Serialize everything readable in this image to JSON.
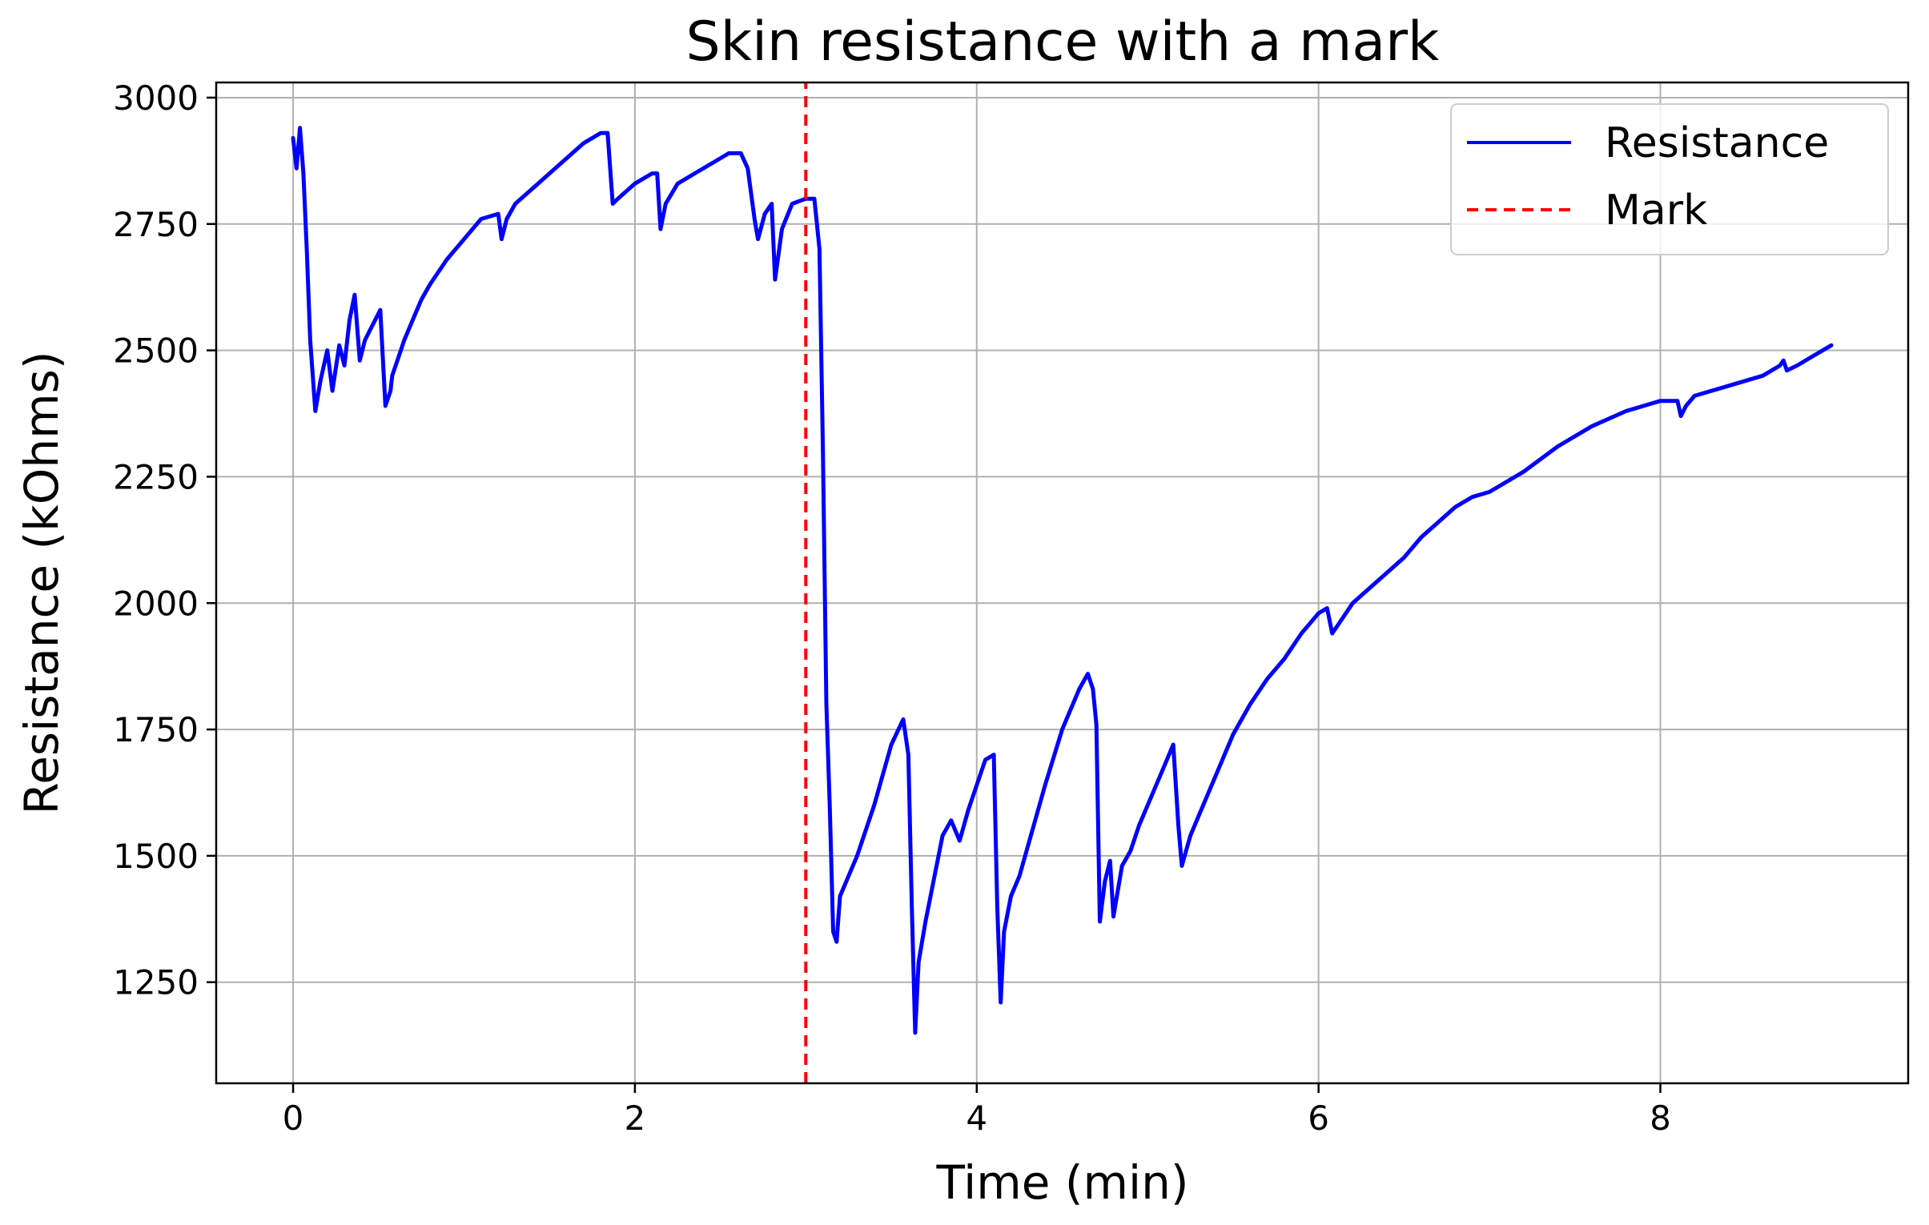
{
  "chart_data": {
    "type": "line",
    "title": "Skin resistance with a mark",
    "xlabel": "Time (min)",
    "ylabel": "Resistance (kOhms)",
    "xlim": [
      -0.45,
      9.45
    ],
    "ylim": [
      1050,
      3030
    ],
    "xticks": [
      0,
      2,
      4,
      6,
      8
    ],
    "yticks": [
      1250,
      1500,
      1750,
      2000,
      2250,
      2500,
      2750,
      3000
    ],
    "grid": true,
    "legend_position": "top-right",
    "colors": {
      "resistance": "#0000ff",
      "mark": "#ff0000"
    },
    "series": [
      {
        "name": "Resistance",
        "style": "solid",
        "x": [
          0.0,
          0.02,
          0.04,
          0.06,
          0.08,
          0.1,
          0.13,
          0.16,
          0.2,
          0.23,
          0.27,
          0.3,
          0.33,
          0.36,
          0.39,
          0.42,
          0.45,
          0.48,
          0.51,
          0.54,
          0.57,
          0.58,
          0.6,
          0.62,
          0.65,
          0.7,
          0.75,
          0.8,
          0.9,
          1.0,
          1.1,
          1.2,
          1.22,
          1.25,
          1.3,
          1.4,
          1.5,
          1.6,
          1.7,
          1.8,
          1.84,
          1.87,
          1.9,
          2.0,
          2.1,
          2.13,
          2.15,
          2.18,
          2.25,
          2.35,
          2.45,
          2.55,
          2.62,
          2.66,
          2.7,
          2.72,
          2.76,
          2.8,
          2.82,
          2.86,
          2.92,
          3.0,
          3.05,
          3.08,
          3.1,
          3.12,
          3.14,
          3.16,
          3.18,
          3.2,
          3.25,
          3.3,
          3.4,
          3.5,
          3.57,
          3.6,
          3.62,
          3.64,
          3.66,
          3.7,
          3.8,
          3.85,
          3.9,
          3.95,
          4.0,
          4.05,
          4.1,
          4.12,
          4.14,
          4.16,
          4.2,
          4.25,
          4.3,
          4.4,
          4.5,
          4.6,
          4.65,
          4.68,
          4.7,
          4.72,
          4.75,
          4.78,
          4.8,
          4.85,
          4.9,
          4.95,
          5.0,
          5.1,
          5.15,
          5.18,
          5.2,
          5.25,
          5.3,
          5.4,
          5.5,
          5.6,
          5.7,
          5.8,
          5.9,
          6.0,
          6.05,
          6.08,
          6.12,
          6.2,
          6.3,
          6.4,
          6.5,
          6.6,
          6.7,
          6.8,
          6.9,
          7.0,
          7.2,
          7.4,
          7.6,
          7.8,
          8.0,
          8.1,
          8.12,
          8.15,
          8.2,
          8.4,
          8.6,
          8.7,
          8.72,
          8.74,
          8.8,
          8.9,
          9.0
        ],
        "y": [
          2920,
          2860,
          2940,
          2850,
          2700,
          2520,
          2380,
          2440,
          2500,
          2420,
          2510,
          2470,
          2560,
          2610,
          2480,
          2520,
          2540,
          2560,
          2580,
          2390,
          2420,
          2450,
          2470,
          2490,
          2520,
          2560,
          2600,
          2630,
          2680,
          2720,
          2760,
          2770,
          2720,
          2760,
          2790,
          2820,
          2850,
          2880,
          2910,
          2930,
          2930,
          2790,
          2800,
          2830,
          2850,
          2850,
          2740,
          2790,
          2830,
          2850,
          2870,
          2890,
          2890,
          2860,
          2760,
          2720,
          2770,
          2790,
          2640,
          2740,
          2790,
          2800,
          2800,
          2700,
          2300,
          1800,
          1600,
          1350,
          1330,
          1420,
          1460,
          1500,
          1600,
          1720,
          1770,
          1700,
          1400,
          1150,
          1290,
          1370,
          1540,
          1570,
          1530,
          1590,
          1640,
          1690,
          1700,
          1400,
          1210,
          1350,
          1420,
          1460,
          1520,
          1640,
          1750,
          1830,
          1860,
          1830,
          1760,
          1370,
          1450,
          1490,
          1380,
          1480,
          1510,
          1560,
          1600,
          1680,
          1720,
          1560,
          1480,
          1540,
          1580,
          1660,
          1740,
          1800,
          1850,
          1890,
          1940,
          1980,
          1990,
          1940,
          1960,
          2000,
          2030,
          2060,
          2090,
          2130,
          2160,
          2190,
          2210,
          2220,
          2260,
          2310,
          2350,
          2380,
          2400,
          2400,
          2370,
          2390,
          2410,
          2430,
          2450,
          2470,
          2480,
          2460,
          2470,
          2490,
          2510
        ]
      },
      {
        "name": "Mark",
        "style": "dashed",
        "x": [
          3.0,
          3.0
        ],
        "y": [
          1050,
          3030
        ]
      }
    ]
  }
}
